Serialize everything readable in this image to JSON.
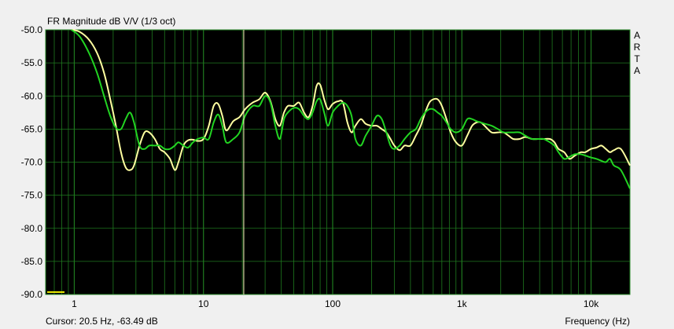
{
  "chart_data": {
    "type": "line",
    "title": "FR Magnitude dB V/V (1/3 oct)",
    "xlabel": "Frequency (Hz)",
    "ylabel": "",
    "xscale": "log",
    "xlim": [
      0.6,
      20000
    ],
    "ylim": [
      -90,
      -50
    ],
    "yticks": [
      -50,
      -55,
      -60,
      -65,
      -70,
      -75,
      -80,
      -85,
      -90
    ],
    "ytick_labels": [
      "-50.0",
      "-55.0",
      "-60.0",
      "-65.0",
      "-70.0",
      "-75.0",
      "-80.0",
      "-85.0",
      "-90.0"
    ],
    "xticks": [
      1,
      10,
      100,
      1000,
      10000
    ],
    "xtick_labels": [
      "1",
      "10",
      "100",
      "1k",
      "10k"
    ],
    "grid": true,
    "background": "#000000",
    "grid_color": "#1f7a1f",
    "watermark": "ARTA",
    "cursor": {
      "x": 20.5,
      "y": -63.49,
      "text": "Cursor: 20.5 Hz, -63.49 dB"
    },
    "series": [
      {
        "color": "#ffffa0",
        "x": [
          0.95,
          1.1,
          1.3,
          1.5,
          1.7,
          1.9,
          2.1,
          2.3,
          2.5,
          2.7,
          2.9,
          3.2,
          3.5,
          3.8,
          4.2,
          4.6,
          5.0,
          5.5,
          6.0,
          6.4,
          7.0,
          7.6,
          8.3,
          9.0,
          10,
          11,
          12,
          13,
          14,
          15,
          17,
          19,
          21,
          24,
          27,
          30,
          33,
          36,
          39,
          42,
          45,
          50,
          55,
          60,
          65,
          70,
          75,
          80,
          86,
          92,
          100,
          110,
          120,
          130,
          140,
          150,
          165,
          180,
          200,
          220,
          240,
          260,
          280,
          300,
          330,
          360,
          400,
          440,
          480,
          520,
          560,
          600,
          650,
          700,
          760,
          820,
          900,
          1000,
          1100,
          1200,
          1300,
          1400,
          1500,
          1700,
          1900,
          2100,
          2300,
          2500,
          2800,
          3100,
          3500,
          3900,
          4300,
          4800,
          5200,
          5600,
          6200,
          6800,
          7500,
          8300,
          9000,
          10000,
          11000,
          12000,
          13000,
          14000,
          15000,
          17000,
          20000
        ],
        "y": [
          -50,
          -50.3,
          -51.5,
          -53.5,
          -56.5,
          -60.5,
          -64.5,
          -68.5,
          -70.8,
          -71.2,
          -70.5,
          -67.5,
          -65.5,
          -65.5,
          -66.5,
          -68,
          -68.5,
          -69.5,
          -71.2,
          -70,
          -67.5,
          -66.7,
          -66.6,
          -66.8,
          -66.5,
          -64.5,
          -61.5,
          -61.2,
          -63,
          -65.2,
          -63.8,
          -63.2,
          -62,
          -61,
          -60.5,
          -59.5,
          -60.8,
          -63.5,
          -64.5,
          -62.5,
          -61.5,
          -61.5,
          -61,
          -62.5,
          -63.2,
          -61.5,
          -58.5,
          -58.3,
          -60.5,
          -62,
          -61.2,
          -60.8,
          -61,
          -64,
          -65.5,
          -64.5,
          -63.5,
          -64.2,
          -64.5,
          -64.5,
          -65,
          -65.5,
          -66.5,
          -67.5,
          -68.2,
          -67.5,
          -67.5,
          -66,
          -64.5,
          -62.5,
          -61,
          -60.5,
          -60.5,
          -61.5,
          -63.5,
          -65.5,
          -67,
          -67.5,
          -66,
          -64.5,
          -64,
          -64,
          -64.5,
          -65.5,
          -65.5,
          -65.5,
          -66,
          -66.5,
          -66.5,
          -66.2,
          -66.5,
          -66.5,
          -66.5,
          -66.5,
          -67,
          -68,
          -68.5,
          -69.5,
          -69,
          -68.5,
          -68.5,
          -68,
          -67.8,
          -67.5,
          -68,
          -68.5,
          -68.2,
          -68,
          -70.5
        ]
      },
      {
        "color": "#22d422",
        "x": [
          0.95,
          1.1,
          1.3,
          1.5,
          1.7,
          1.9,
          2.1,
          2.3,
          2.5,
          2.7,
          2.9,
          3.2,
          3.5,
          3.8,
          4.2,
          4.6,
          5.0,
          5.5,
          6.0,
          6.4,
          7.0,
          7.6,
          8.3,
          9.0,
          10,
          11,
          12,
          13,
          14,
          15,
          17,
          19,
          21,
          24,
          27,
          30,
          33,
          36,
          39,
          42,
          45,
          50,
          55,
          60,
          65,
          70,
          75,
          80,
          86,
          92,
          100,
          110,
          120,
          130,
          140,
          150,
          165,
          180,
          200,
          220,
          240,
          260,
          280,
          300,
          330,
          360,
          400,
          440,
          480,
          520,
          560,
          600,
          650,
          700,
          760,
          820,
          900,
          1000,
          1100,
          1200,
          1300,
          1400,
          1500,
          1700,
          1900,
          2100,
          2300,
          2500,
          2800,
          3100,
          3500,
          3900,
          4300,
          4800,
          5200,
          5600,
          6200,
          6800,
          7500,
          8300,
          9000,
          10000,
          11000,
          12000,
          13000,
          14000,
          15000,
          17000,
          20000
        ],
        "y": [
          -50,
          -51,
          -53.5,
          -56.5,
          -60,
          -63,
          -64.8,
          -65,
          -63.5,
          -62.5,
          -64,
          -67.5,
          -68,
          -67.5,
          -67.5,
          -67.5,
          -68,
          -68,
          -67.5,
          -67,
          -67.5,
          -67.8,
          -67,
          -66.5,
          -66.3,
          -66.5,
          -64,
          -62.8,
          -64.5,
          -67,
          -66.5,
          -65.5,
          -63,
          -61.5,
          -61.5,
          -60,
          -61,
          -64.5,
          -66.5,
          -63.5,
          -62.5,
          -61.8,
          -62,
          -63,
          -63.5,
          -62.5,
          -60.8,
          -60.5,
          -62.5,
          -64.5,
          -62.5,
          -61.5,
          -61,
          -61.5,
          -63,
          -66.5,
          -67.5,
          -66,
          -64.5,
          -63,
          -63.5,
          -65.5,
          -67.5,
          -68,
          -67.5,
          -66.5,
          -65.5,
          -65,
          -63.5,
          -62.5,
          -62,
          -62,
          -62.5,
          -63,
          -64,
          -65,
          -65.5,
          -65,
          -63.5,
          -63.5,
          -63.8,
          -64,
          -64.2,
          -64.5,
          -65,
          -65.5,
          -65.5,
          -65.5,
          -65.5,
          -66,
          -66.5,
          -66.5,
          -66.5,
          -67,
          -67.5,
          -68.5,
          -69.5,
          -69.2,
          -68.8,
          -68.8,
          -69,
          -69.3,
          -69.5,
          -69.8,
          -70,
          -69.5,
          -70.5,
          -71.2,
          -74
        ]
      }
    ]
  }
}
